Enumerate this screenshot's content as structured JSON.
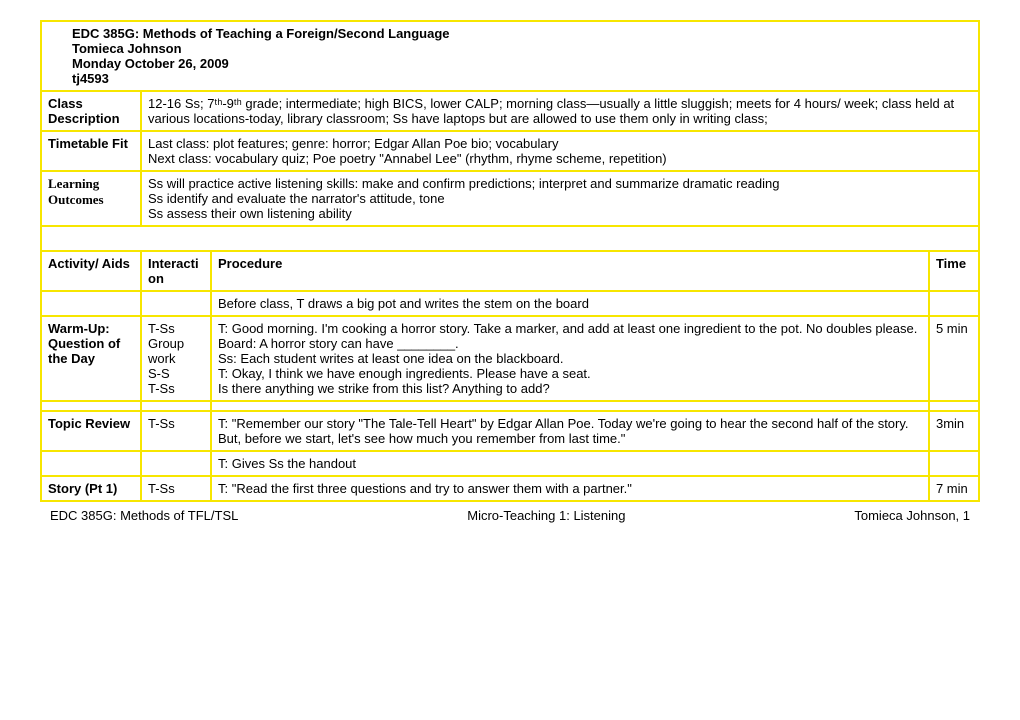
{
  "header": {
    "course": "EDC 385G: Methods of Teaching a Foreign/Second Language",
    "name": "Tomieca Johnson",
    "date": "Monday October 26, 2009",
    "id": "tj4593"
  },
  "info": {
    "class_desc_label": "Class Description",
    "class_desc": "12-16 Ss;  7ᵗʰ-9ᵗʰ grade; intermediate; high BICS, lower CALP; morning class—usually a little sluggish; meets for 4 hours/ week; class held at various locations-today, library classroom; Ss have laptops but are allowed to use them only in writing class;",
    "timetable_label": "Timetable Fit",
    "timetable_l1": "Last class: plot features; genre: horror; Edgar Allan Poe bio; vocabulary",
    "timetable_l2": "Next class: vocabulary quiz; Poe poetry \"Annabel Lee\" (rhythm, rhyme scheme, repetition)",
    "learning_label": "Learning Outcomes",
    "learning_l1": "Ss will practice active listening skills: make and confirm predictions; interpret and summarize dramatic reading",
    "learning_l2": "Ss identify and evaluate the narrator's attitude, tone",
    "learning_l3": "Ss assess their own listening ability"
  },
  "cols": {
    "activity": "Activity/ Aids",
    "interaction": "Interaction",
    "procedure": "Procedure",
    "time": "Time"
  },
  "rows": {
    "preclass_proc": "Before class, T draws a big pot and writes the stem on the board",
    "warmup_act": "Warm-Up: Question of the Day",
    "warmup_int": "T-Ss\nGroup work\nS-S\nT-Ss",
    "warmup_proc": "T: Good morning. I'm cooking a horror story. Take a marker, and add at least one ingredient to the pot. No doubles please.\nBoard:             A horror story can have ________.\nSs: Each student writes at least one idea on the blackboard.\nT: Okay, I think we have enough ingredients. Please have a seat.\nIs there anything we strike from this list? Anything to add?",
    "warmup_time": "5 min",
    "topic_act": "Topic Review",
    "topic_int": "T-Ss",
    "topic_proc": "T: \"Remember our story \"The Tale-Tell Heart\" by Edgar Allan Poe. Today we're going to hear the second half of the story. But, before we start, let's see how much you remember from last time.\"",
    "topic_time": "3min",
    "handout_proc": "T: Gives Ss the handout",
    "story_act": "Story (Pt 1)",
    "story_int": "T-Ss",
    "story_proc": "T: \"Read the first three questions and try to answer them with a partner.\"",
    "story_time": "7 min"
  },
  "footer": {
    "left": "EDC 385G: Methods of TFL/TSL",
    "mid": "Micro-Teaching 1: Listening",
    "right": "Tomieca Johnson, 1"
  }
}
